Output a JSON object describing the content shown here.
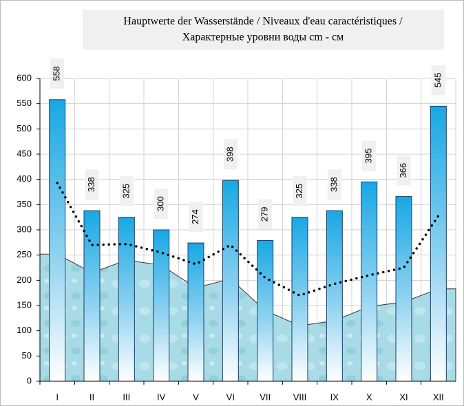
{
  "chart_data": {
    "type": "bar",
    "title": [
      "Hauptwerte der Wasserstände / Niveaux d'eau caractéristiques /",
      "Характерные уровни воды cm - см"
    ],
    "categories": [
      "I",
      "II",
      "III",
      "IV",
      "V",
      "VI",
      "VII",
      "VIII",
      "IX",
      "X",
      "XI",
      "XII"
    ],
    "series": [
      {
        "type": "bar",
        "color": "#1aaae6",
        "values": [
          558,
          338,
          325,
          300,
          274,
          398,
          279,
          325,
          338,
          395,
          366,
          545
        ]
      },
      {
        "type": "area",
        "color": "#a6d8e4",
        "values": [
          252,
          215,
          240,
          230,
          185,
          203,
          140,
          110,
          120,
          148,
          157,
          183
        ]
      },
      {
        "type": "line",
        "color": "#000000",
        "values": [
          393,
          270,
          272,
          255,
          232,
          270,
          205,
          170,
          193,
          210,
          225,
          328
        ]
      }
    ],
    "ylim": [
      0,
      600
    ],
    "yticks": [
      0,
      50,
      100,
      150,
      200,
      250,
      300,
      350,
      400,
      450,
      500,
      550,
      600
    ],
    "grid": true
  }
}
